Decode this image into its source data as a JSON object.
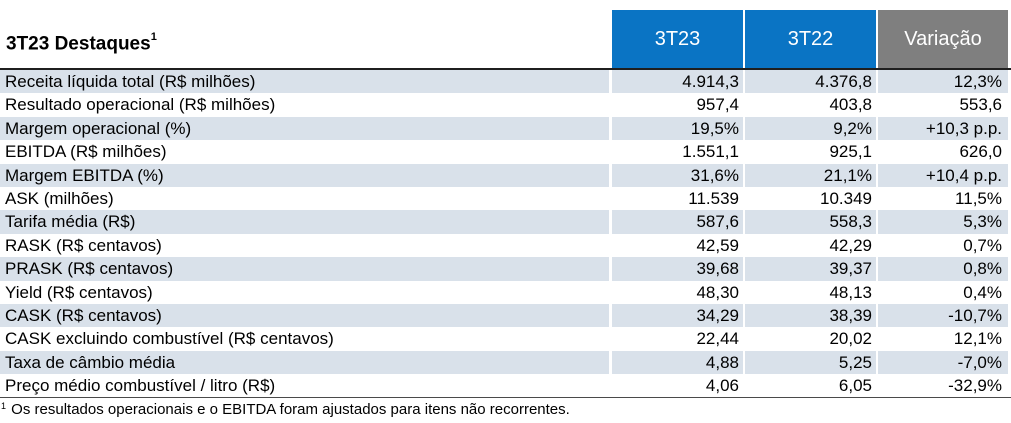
{
  "header": {
    "title": "3T23 Destaques",
    "title_sup": "1",
    "col1": "3T23",
    "col2": "3T22",
    "col3": "Variação"
  },
  "colors": {
    "header_blue": "#0a74c4",
    "header_gray": "#7f7f7f",
    "row_shade": "#d9e1ea"
  },
  "rows": [
    {
      "label": "Receita líquida total (R$ milhões)",
      "v1": "4.914,3",
      "v2": "4.376,8",
      "v3": "12,3%"
    },
    {
      "label": "Resultado operacional (R$ milhões)",
      "v1": "957,4",
      "v2": "403,8",
      "v3": "553,6"
    },
    {
      "label": "Margem operacional (%)",
      "v1": "19,5%",
      "v2": "9,2%",
      "v3": "+10,3 p.p."
    },
    {
      "label": "EBITDA (R$ milhões)",
      "v1": "1.551,1",
      "v2": "925,1",
      "v3": "626,0"
    },
    {
      "label": "Margem EBITDA (%)",
      "v1": "31,6%",
      "v2": "21,1%",
      "v3": "+10,4 p.p."
    },
    {
      "label": "ASK (milhões)",
      "v1": "11.539",
      "v2": "10.349",
      "v3": "11,5%"
    },
    {
      "label": "Tarifa média (R$)",
      "v1": "587,6",
      "v2": "558,3",
      "v3": "5,3%"
    },
    {
      "label": "RASK (R$ centavos)",
      "v1": "42,59",
      "v2": "42,29",
      "v3": "0,7%"
    },
    {
      "label": "PRASK (R$ centavos)",
      "v1": "39,68",
      "v2": "39,37",
      "v3": "0,8%"
    },
    {
      "label": "Yield (R$ centavos)",
      "v1": "48,30",
      "v2": "48,13",
      "v3": "0,4%"
    },
    {
      "label": "CASK (R$ centavos)",
      "v1": "34,29",
      "v2": "38,39",
      "v3": "-10,7%"
    },
    {
      "label": "CASK excluindo combustível (R$ centavos)",
      "v1": "22,44",
      "v2": "20,02",
      "v3": "12,1%"
    },
    {
      "label": "Taxa de câmbio média",
      "v1": "4,88",
      "v2": "5,25",
      "v3": "-7,0%"
    },
    {
      "label": "Preço médio combustível / litro (R$)",
      "v1": "4,06",
      "v2": "6,05",
      "v3": "-32,9%"
    }
  ],
  "footnote": {
    "mark": "1",
    "text": " Os resultados operacionais e o EBITDA foram ajustados para itens não recorrentes."
  }
}
